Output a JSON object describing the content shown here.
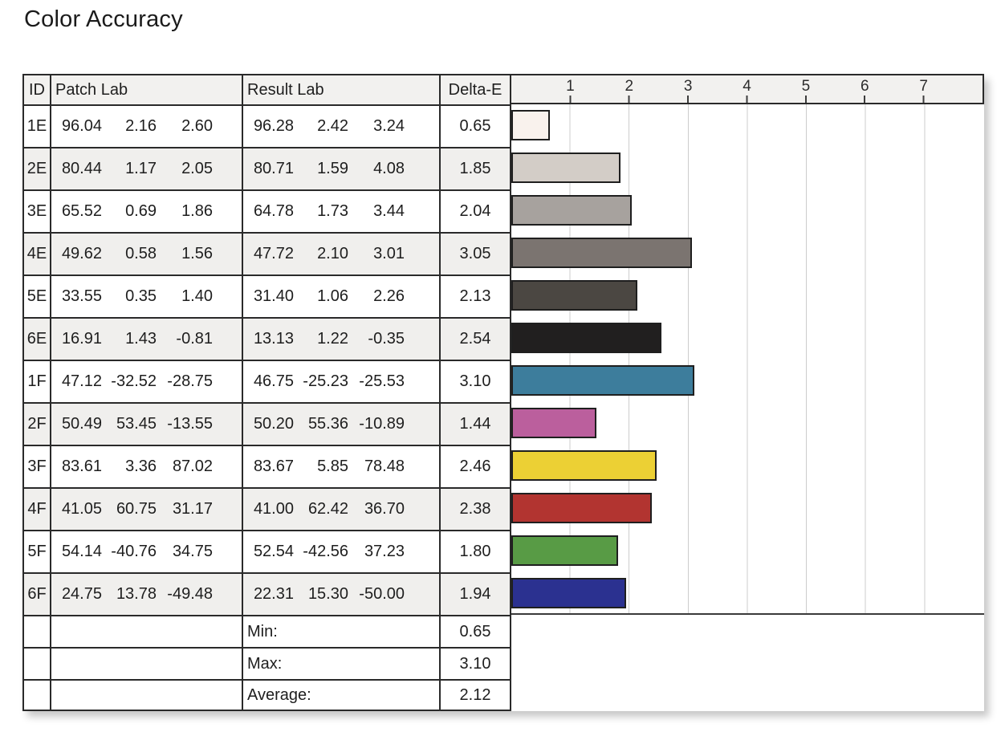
{
  "title": "Color Accuracy",
  "table": {
    "headers": {
      "id": "ID",
      "patch": "Patch Lab",
      "result": "Result Lab",
      "delta": "Delta-E"
    },
    "rows": [
      {
        "id": "1E",
        "patch": [
          "96.04",
          "2.16",
          "2.60"
        ],
        "result": [
          "96.28",
          "2.42",
          "3.24"
        ],
        "delta": "0.65"
      },
      {
        "id": "2E",
        "patch": [
          "80.44",
          "1.17",
          "2.05"
        ],
        "result": [
          "80.71",
          "1.59",
          "4.08"
        ],
        "delta": "1.85"
      },
      {
        "id": "3E",
        "patch": [
          "65.52",
          "0.69",
          "1.86"
        ],
        "result": [
          "64.78",
          "1.73",
          "3.44"
        ],
        "delta": "2.04"
      },
      {
        "id": "4E",
        "patch": [
          "49.62",
          "0.58",
          "1.56"
        ],
        "result": [
          "47.72",
          "2.10",
          "3.01"
        ],
        "delta": "3.05"
      },
      {
        "id": "5E",
        "patch": [
          "33.55",
          "0.35",
          "1.40"
        ],
        "result": [
          "31.40",
          "1.06",
          "2.26"
        ],
        "delta": "2.13"
      },
      {
        "id": "6E",
        "patch": [
          "16.91",
          "1.43",
          "-0.81"
        ],
        "result": [
          "13.13",
          "1.22",
          "-0.35"
        ],
        "delta": "2.54"
      },
      {
        "id": "1F",
        "patch": [
          "47.12",
          "-32.52",
          "-28.75"
        ],
        "result": [
          "46.75",
          "-25.23",
          "-25.53"
        ],
        "delta": "3.10"
      },
      {
        "id": "2F",
        "patch": [
          "50.49",
          "53.45",
          "-13.55"
        ],
        "result": [
          "50.20",
          "55.36",
          "-10.89"
        ],
        "delta": "1.44"
      },
      {
        "id": "3F",
        "patch": [
          "83.61",
          "3.36",
          "87.02"
        ],
        "result": [
          "83.67",
          "5.85",
          "78.48"
        ],
        "delta": "2.46"
      },
      {
        "id": "4F",
        "patch": [
          "41.05",
          "60.75",
          "31.17"
        ],
        "result": [
          "41.00",
          "62.42",
          "36.70"
        ],
        "delta": "2.38"
      },
      {
        "id": "5F",
        "patch": [
          "54.14",
          "-40.76",
          "34.75"
        ],
        "result": [
          "52.54",
          "-42.56",
          "37.23"
        ],
        "delta": "1.80"
      },
      {
        "id": "6F",
        "patch": [
          "24.75",
          "13.78",
          "-49.48"
        ],
        "result": [
          "22.31",
          "15.30",
          "-50.00"
        ],
        "delta": "1.94"
      }
    ],
    "summary": [
      {
        "label": "Min:",
        "value": "0.65"
      },
      {
        "label": "Max:",
        "value": "3.10"
      },
      {
        "label": "Average:",
        "value": "2.12"
      }
    ]
  },
  "chart_data": {
    "type": "bar",
    "orientation": "horizontal",
    "title": "Color Accuracy",
    "value_label": "Delta-E",
    "categories": [
      "1E",
      "2E",
      "3E",
      "4E",
      "5E",
      "6E",
      "1F",
      "2F",
      "3F",
      "4F",
      "5F",
      "6F"
    ],
    "values": [
      0.65,
      1.85,
      2.04,
      3.05,
      2.13,
      2.54,
      3.1,
      1.44,
      2.46,
      2.38,
      1.8,
      1.94
    ],
    "bar_colors": [
      "#f9f2ed",
      "#d3cdc7",
      "#a7a29e",
      "#7b7470",
      "#4b4742",
      "#211f1f",
      "#3d7d9c",
      "#bb5f9d",
      "#ecd034",
      "#b23430",
      "#589b45",
      "#2b3190"
    ],
    "xlim": [
      0,
      8
    ],
    "ticks": [
      1,
      2,
      3,
      4,
      5,
      6,
      7
    ],
    "grid": true,
    "summary": {
      "min": 0.65,
      "max": 3.1,
      "average": 2.12
    }
  },
  "colors": {
    "border": "#2a2a2a",
    "header_bg": "#f2f1ef",
    "row_shade_bg": "#f0efed",
    "gridline": "#cdcdcd"
  }
}
